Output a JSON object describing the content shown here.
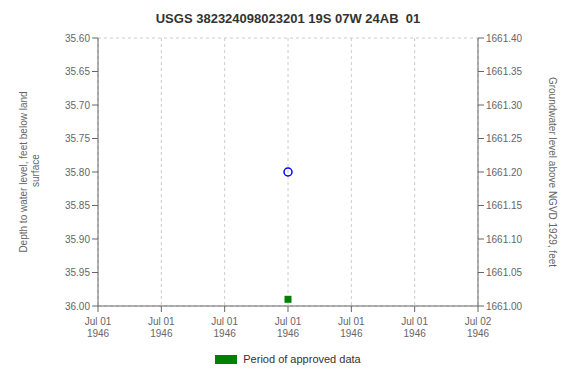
{
  "chart_data": {
    "type": "scatter",
    "title": "USGS 382324098023201 19S 07W 24AB  01",
    "ylabel": "Depth to water level, feet below land\n surface",
    "y2label": "Groundwater level above NGVD 1929, feet",
    "categories": [
      "Jul 01\n1946",
      "Jul 01\n1946",
      "Jul 01\n1946",
      "Jul 01\n1946",
      "Jul 01\n1946",
      "Jul 01\n1946",
      "Jul 02\n1946"
    ],
    "series": [
      {
        "color": "#0000FF",
        "marker": "circle",
        "values": [
          null,
          null,
          null,
          35.8,
          null,
          null,
          null
        ]
      },
      {
        "name": "Period of approved data",
        "color": "#008000",
        "marker": "square",
        "values": [
          null,
          null,
          null,
          35.99,
          null,
          null,
          null
        ]
      }
    ],
    "ylim": [
      36.0,
      35.6
    ],
    "yticks": [
      {
        "value": 35.6,
        "label": "35.60"
      },
      {
        "value": 35.65,
        "label": "35.65"
      },
      {
        "value": 35.7,
        "label": "35.70"
      },
      {
        "value": 35.75,
        "label": "35.75"
      },
      {
        "value": 35.8,
        "label": "35.80"
      },
      {
        "value": 35.85,
        "label": "35.85"
      },
      {
        "value": 35.9,
        "label": "35.90"
      },
      {
        "value": 35.95,
        "label": "35.95"
      },
      {
        "value": 36.0,
        "label": "36.00"
      }
    ],
    "y2lim": [
      1661.0,
      1661.4
    ],
    "y2ticks": [
      {
        "value": 1661.0,
        "label": "1661.00"
      },
      {
        "value": 1661.05,
        "label": "1661.05"
      },
      {
        "value": 1661.1,
        "label": "1661.10"
      },
      {
        "value": 1661.15,
        "label": "1661.15"
      },
      {
        "value": 1661.2,
        "label": "1661.20"
      },
      {
        "value": 1661.25,
        "label": "1661.25"
      },
      {
        "value": 1661.3,
        "label": "1661.30"
      },
      {
        "value": 1661.35,
        "label": "1661.35"
      },
      {
        "value": 1661.4,
        "label": "1661.40"
      }
    ],
    "grid": true,
    "legend": "bottom"
  }
}
